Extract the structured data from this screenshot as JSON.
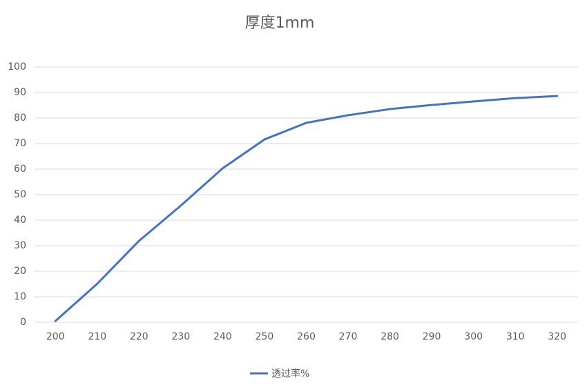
{
  "chart_data": {
    "type": "line",
    "title": "厚度1mm",
    "categories": [
      "200",
      "210",
      "220",
      "230",
      "240",
      "250",
      "260",
      "270",
      "280",
      "290",
      "300",
      "310",
      "320"
    ],
    "series": [
      {
        "name": "透过率%",
        "color": "#4472c4",
        "values": [
          0.5,
          15.1,
          31.9,
          45.7,
          60.3,
          71.6,
          78.1,
          81.1,
          83.5,
          85.1,
          86.5,
          87.8,
          88.6
        ]
      }
    ],
    "ylim": [
      0,
      100
    ],
    "yticks": [
      0,
      10,
      20,
      30,
      40,
      50,
      60,
      70,
      80,
      90,
      100
    ],
    "grid": true,
    "legend": "bottom"
  }
}
